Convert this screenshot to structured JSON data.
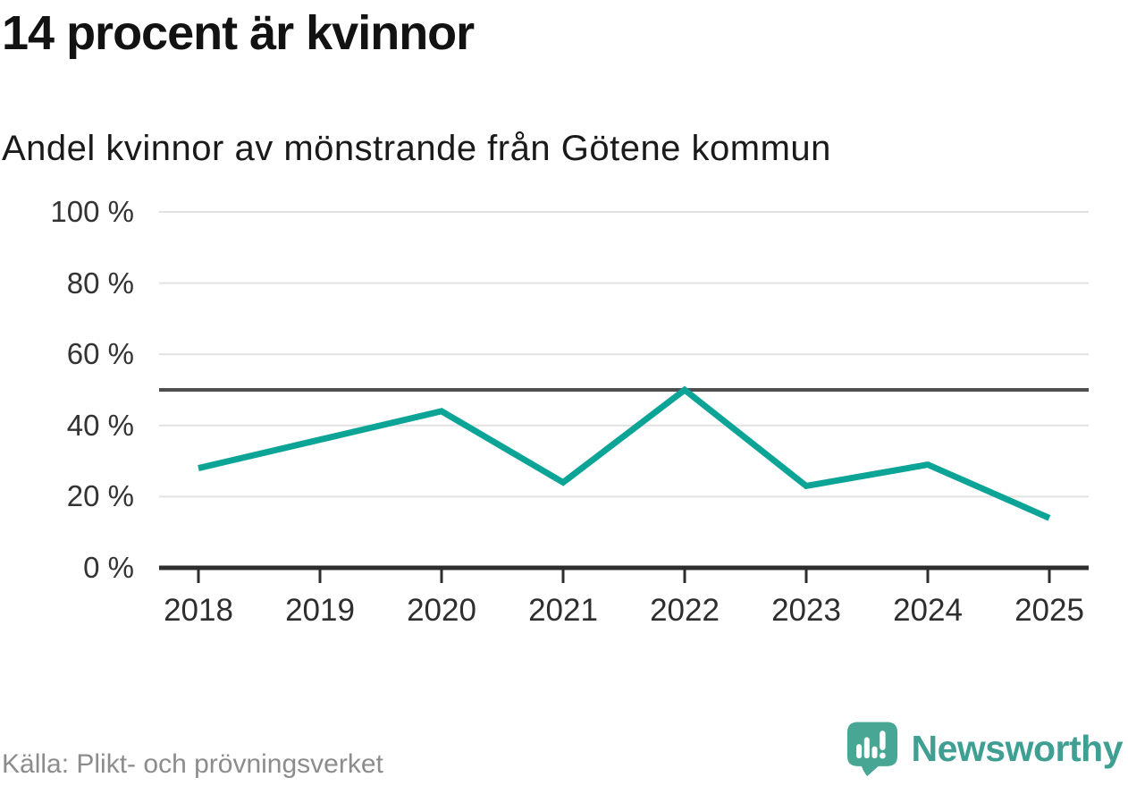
{
  "header": {
    "title": "14 procent är kvinnor",
    "subtitle": "Andel kvinnor av mönstrande från Götene kommun"
  },
  "chart_data": {
    "type": "line",
    "title": "14 procent är kvinnor",
    "subtitle": "Andel kvinnor av mönstrande från Götene kommun",
    "categories": [
      "2018",
      "2019",
      "2020",
      "2021",
      "2022",
      "2023",
      "2024",
      "2025"
    ],
    "series": [
      {
        "name": "Andel kvinnor av mönstrande",
        "values": [
          28,
          36,
          44,
          24,
          50,
          23,
          29,
          14
        ]
      }
    ],
    "unit": "%",
    "ylim": [
      0,
      100
    ],
    "yticks": [
      {
        "value": 0,
        "label": "0 %"
      },
      {
        "value": 20,
        "label": "20 %"
      },
      {
        "value": 40,
        "label": "40 %"
      },
      {
        "value": 60,
        "label": "60 %"
      },
      {
        "value": 80,
        "label": "80 %"
      },
      {
        "value": 100,
        "label": "100 %"
      }
    ],
    "reference_line": {
      "value": 50
    },
    "grid": true,
    "legend": false,
    "colors": {
      "line": "#0ca496",
      "reference_line": "#4f4f4f",
      "gridline": "#e2e2e2",
      "axis": "#2e2e2e",
      "tick_label": "#333333"
    }
  },
  "footer": {
    "source": "Källa: Plikt- och prövningsverket",
    "brand": "Newsworthy"
  },
  "icons": {
    "brand_logo": "speech-bubble-bar-chart-exclamation-icon"
  },
  "brand_colors": {
    "icon": "#47a794",
    "text": "#3f9f92"
  }
}
